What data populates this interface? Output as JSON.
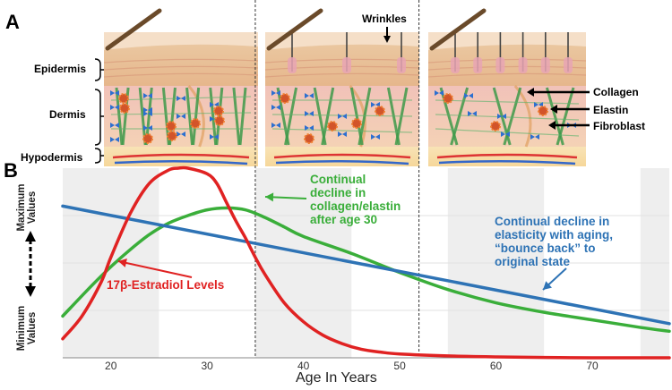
{
  "panels": {
    "a": "A",
    "b": "B"
  },
  "skin_layers": {
    "epidermis": "Epidermis",
    "dermis": "Dermis",
    "hypodermis": "Hypodermis"
  },
  "annotations": {
    "wrinkles": "Wrinkles",
    "collagen": "Collagen",
    "elastin": "Elastin",
    "fibroblast": "Fibroblast"
  },
  "chart_data": {
    "type": "line",
    "title": "",
    "xlabel": "Age In Years",
    "ylabel_top": [
      "Maximum",
      "Values"
    ],
    "ylabel_bottom": [
      "Minimum",
      "Values"
    ],
    "xlim": [
      15,
      78
    ],
    "x_ticks": [
      20,
      30,
      40,
      50,
      60,
      70
    ],
    "ylim": [
      0,
      100
    ],
    "grid": "alternating vertical bands",
    "markers_at": [
      35,
      52
    ],
    "series": [
      {
        "name": "17β-Estradiol Levels",
        "color": "#e02222",
        "label_lines": [
          "17β-Estradiol Levels"
        ],
        "x": [
          15,
          17,
          19,
          20,
          22,
          24,
          26,
          27,
          28,
          30,
          31,
          32,
          33,
          34,
          35,
          36,
          38,
          40,
          42,
          44,
          46,
          48,
          50,
          55,
          60,
          65,
          70,
          78
        ],
        "y": [
          10,
          22,
          40,
          53,
          76,
          92,
          99,
          100,
          100,
          97,
          92,
          82,
          72,
          63,
          53,
          44,
          29,
          19,
          12,
          7.5,
          4.5,
          3,
          2,
          1,
          0.5,
          0.2,
          0,
          0
        ]
      },
      {
        "name": "Continual decline in collagen/elastin after age 30",
        "color": "#3aae3a",
        "label_lines": [
          "Continual",
          "decline in",
          "collagen/elastin",
          "after age 30"
        ],
        "x": [
          15,
          18,
          20,
          22,
          24,
          26,
          28,
          30,
          32,
          34,
          36,
          38,
          40,
          45,
          50,
          55,
          60,
          65,
          70,
          75,
          78
        ],
        "y": [
          22,
          38,
          48,
          57,
          65,
          71,
          75,
          78,
          79,
          78,
          74,
          69,
          64,
          55,
          45,
          36,
          29,
          24,
          20,
          16,
          14
        ]
      },
      {
        "name": "Continual decline in elasticity with aging, \"bounce back\" to original state",
        "color": "#2e73b5",
        "label_lines": [
          "Continual decline in",
          "elasticity with aging,",
          "“bounce back” to",
          "original state"
        ],
        "x": [
          15,
          78
        ],
        "y": [
          80,
          18
        ]
      }
    ]
  }
}
